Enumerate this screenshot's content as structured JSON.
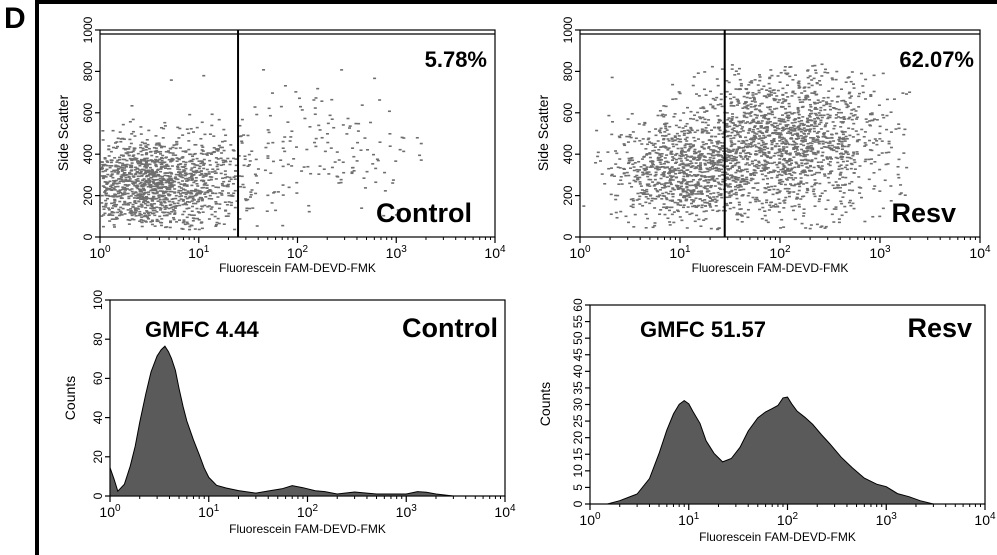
{
  "panel_label": "D",
  "colors": {
    "dots": "#6f6f6f",
    "fill": "#5a5a5a",
    "axis": "#000000"
  },
  "chart_data": [
    {
      "type": "scatter",
      "xlabel": "Fluorescein FAM-DEVD-FMK",
      "ylabel": "Side Scatter",
      "x_scale": "log",
      "xlim": [
        1,
        10000
      ],
      "ylim": [
        0,
        1024
      ],
      "yticks": [
        "0",
        "200",
        "400",
        "600",
        "800",
        "1000"
      ],
      "gate_x": 25,
      "gate_percent": "5.78%",
      "label": "Control",
      "series": [
        {
          "population": "main",
          "x_center": 3.2,
          "x_spread_decades": 0.45,
          "y_center": 260,
          "y_spread": 120,
          "count": 1600
        },
        {
          "population": "tail",
          "x_center": 150,
          "x_spread_decades": 0.6,
          "y_center": 450,
          "y_spread": 180,
          "count": 180
        }
      ]
    },
    {
      "type": "scatter",
      "xlabel": "Fluorescein FAM-DEVD-FMK",
      "ylabel": "Side Scatter",
      "x_scale": "log",
      "xlim": [
        1,
        10000
      ],
      "ylim": [
        0,
        1024
      ],
      "yticks": [
        "0",
        "200",
        "400",
        "600",
        "800",
        "1000"
      ],
      "gate_x": 28,
      "gate_percent": "62.07%",
      "label": "Resv",
      "series": [
        {
          "population": "left",
          "x_center": 10,
          "x_spread_decades": 0.35,
          "y_center": 330,
          "y_spread": 130,
          "count": 900
        },
        {
          "population": "right",
          "x_center": 110,
          "x_spread_decades": 0.5,
          "y_center": 470,
          "y_spread": 180,
          "count": 1700
        }
      ]
    },
    {
      "type": "area",
      "xlabel": "Fluorescein FAM-DEVD-FMK",
      "ylabel": "Counts",
      "x_scale": "log",
      "xlim": [
        1,
        10000
      ],
      "ylim": [
        0,
        100
      ],
      "yticks": [
        "0",
        "20",
        "40",
        "60",
        "80",
        "100"
      ],
      "annotation": "GMFC 4.44",
      "label": "Control",
      "x": [
        1,
        1.1,
        1.2,
        1.4,
        1.6,
        1.8,
        2.0,
        2.3,
        2.6,
        3.0,
        3.3,
        3.6,
        3.9,
        4.2,
        4.6,
        5.0,
        5.5,
        6.0,
        7.0,
        8.0,
        9.0,
        10,
        12,
        15,
        20,
        30,
        40,
        55,
        70,
        90,
        120,
        150,
        200,
        300,
        500,
        700,
        1000,
        1300,
        1600,
        2000,
        3000,
        5000,
        10000
      ],
      "y": [
        15,
        8,
        3,
        6,
        15,
        25,
        38,
        52,
        63,
        71,
        75,
        77,
        74,
        70,
        64,
        55,
        46,
        38,
        29,
        21,
        14,
        9,
        6,
        4,
        3,
        2,
        3,
        4,
        5,
        4,
        3,
        2,
        1,
        2,
        1,
        1,
        1,
        2,
        2,
        1,
        0,
        0,
        0
      ]
    },
    {
      "type": "area",
      "xlabel": "Fluorescein FAM-DEVD-FMK",
      "ylabel": "Counts",
      "x_scale": "log",
      "xlim": [
        1,
        10000
      ],
      "ylim": [
        0,
        60
      ],
      "yticks": [
        "0",
        "5",
        "10",
        "15",
        "20",
        "25",
        "30",
        "35",
        "40",
        "45",
        "50",
        "55",
        "60"
      ],
      "annotation": "GMFC 51.57",
      "label": "Resv",
      "x": [
        1,
        1.5,
        2,
        2.5,
        3,
        4,
        5,
        6,
        7,
        8,
        9,
        10,
        11,
        13,
        15,
        18,
        22,
        27,
        33,
        40,
        50,
        60,
        70,
        80,
        90,
        100,
        110,
        125,
        150,
        180,
        220,
        270,
        350,
        450,
        600,
        800,
        1000,
        1300,
        1700,
        2200,
        3000,
        5000,
        10000
      ],
      "y": [
        0,
        0,
        1,
        2,
        3,
        8,
        15,
        22,
        27,
        30,
        31,
        30,
        28,
        24,
        19,
        15,
        13,
        14,
        17,
        22,
        26,
        28,
        29,
        30,
        32,
        32,
        30,
        28,
        26,
        24,
        21,
        18,
        14,
        11,
        8,
        6,
        5,
        3,
        2,
        1,
        0,
        0,
        0
      ]
    }
  ]
}
